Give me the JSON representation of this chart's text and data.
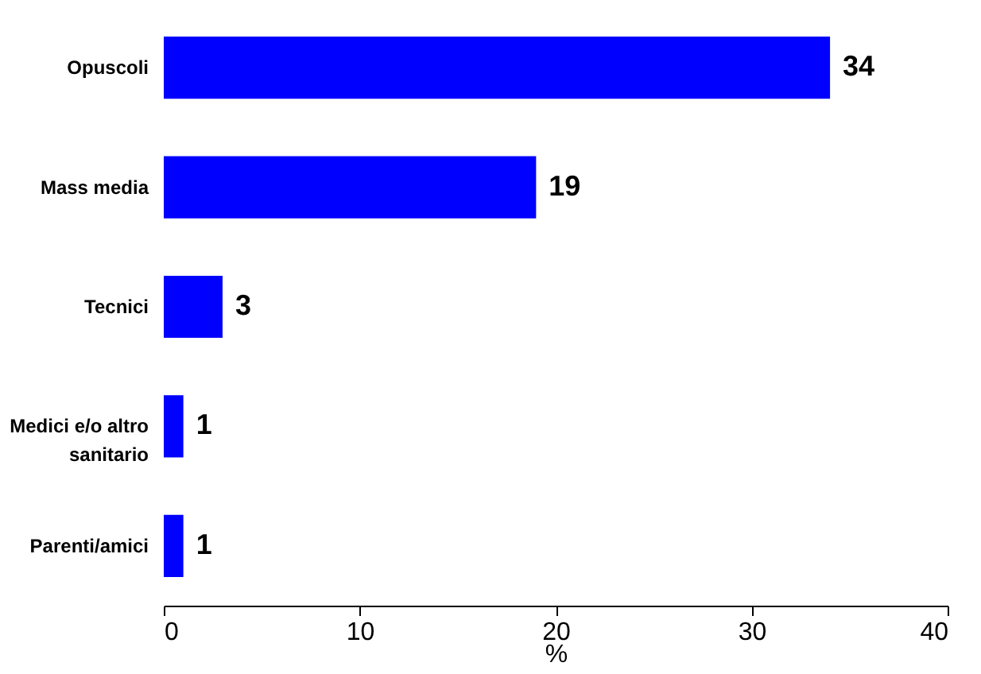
{
  "chart_data": {
    "type": "bar",
    "orientation": "horizontal",
    "categories": [
      "Opuscoli",
      "Mass media",
      "Tecnici",
      "Medici e/o altro sanitario",
      "Parenti/amici"
    ],
    "values": [
      34,
      19,
      3,
      1,
      1
    ],
    "color": "#0000ff",
    "xlim": [
      0,
      40
    ],
    "xticks": [
      0,
      10,
      20,
      30,
      40
    ],
    "xlabel": "%",
    "data_labels": true,
    "grid": false
  }
}
